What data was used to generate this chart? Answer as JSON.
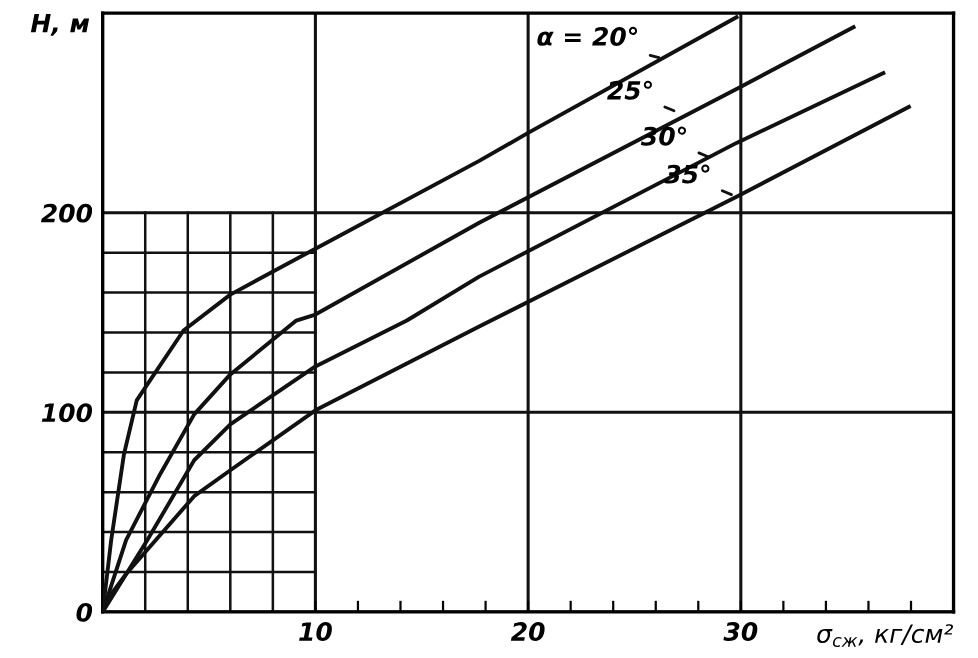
{
  "chart_data": {
    "type": "line",
    "xlabel": "σ$_{сж}$, кг/см²",
    "ylabel": "H, м",
    "xlim": [
      0,
      40
    ],
    "ylim": [
      0,
      300
    ],
    "xticks": [
      10,
      {
        "value": 12,
        "label": null
      },
      {
        "value": 14,
        "label": null
      },
      {
        "value": 16,
        "label": null
      },
      {
        "value": 18,
        "label": null
      },
      20,
      {
        "value": 22,
        "label": null
      },
      {
        "value": 24,
        "label": null
      },
      {
        "value": 26,
        "label": null
      },
      {
        "value": 28,
        "label": null
      },
      30,
      {
        "value": 32,
        "label": null
      },
      {
        "value": 34,
        "label": null
      },
      {
        "value": 36,
        "label": null
      },
      {
        "value": 38,
        "label": null
      }
    ],
    "yticks": [
      0,
      100,
      200
    ],
    "grid": true,
    "legend": false,
    "marker": "none",
    "line_style": "solid",
    "series": [
      {
        "color": "#111111",
        "x": [
          0,
          0.4,
          1,
          1.6,
          2.1,
          3.8,
          6,
          10,
          17.7,
          20,
          29.8
        ],
        "values": [
          0,
          36,
          79,
          106,
          114,
          141,
          159,
          182,
          226,
          240,
          298
        ]
      },
      {
        "color": "#111111",
        "x": [
          0,
          1.1,
          2.7,
          4.3,
          6,
          9.1,
          10,
          17.7,
          29.8,
          35.3
        ],
        "values": [
          0,
          36,
          69,
          99,
          119,
          146,
          149,
          195,
          262,
          293
        ]
      },
      {
        "color": "#111111",
        "x": [
          0,
          2.1,
          4.3,
          6,
          10,
          14.3,
          17.7,
          29.8,
          36.7
        ],
        "values": [
          0,
          36,
          76,
          94,
          123,
          146,
          168,
          235,
          270
        ]
      },
      {
        "color": "#111111",
        "x": [
          0,
          0.2,
          1.1,
          4.3,
          6,
          10,
          17.7,
          29.8,
          37.9
        ],
        "values": [
          0,
          6,
          19,
          58,
          71,
          101,
          143,
          208,
          253
        ]
      }
    ],
    "ref_lines": [
      {
        "axis": "x",
        "value": 2
      },
      {
        "axis": "x",
        "value": 4
      },
      {
        "axis": "x",
        "value": 6
      },
      {
        "axis": "x",
        "value": 8
      },
      {
        "axis": "y",
        "value": 20
      },
      {
        "axis": "y",
        "value": 40
      },
      {
        "axis": "y",
        "value": 60
      },
      {
        "axis": "y",
        "value": 80
      },
      {
        "axis": "y",
        "value": 120
      },
      {
        "axis": "y",
        "value": 140
      },
      {
        "axis": "y",
        "value": 160
      },
      {
        "axis": "y",
        "value": 180
      }
    ],
    "annotations": [
      {
        "text": "α = 20°",
        "x": 26.4,
        "y": 277
      },
      {
        "text": "25°",
        "x": 27.1,
        "y": 250
      },
      {
        "text": "30°",
        "x": 28.7,
        "y": 227
      },
      {
        "text": "35°",
        "x": 29.8,
        "y": 208
      }
    ]
  }
}
